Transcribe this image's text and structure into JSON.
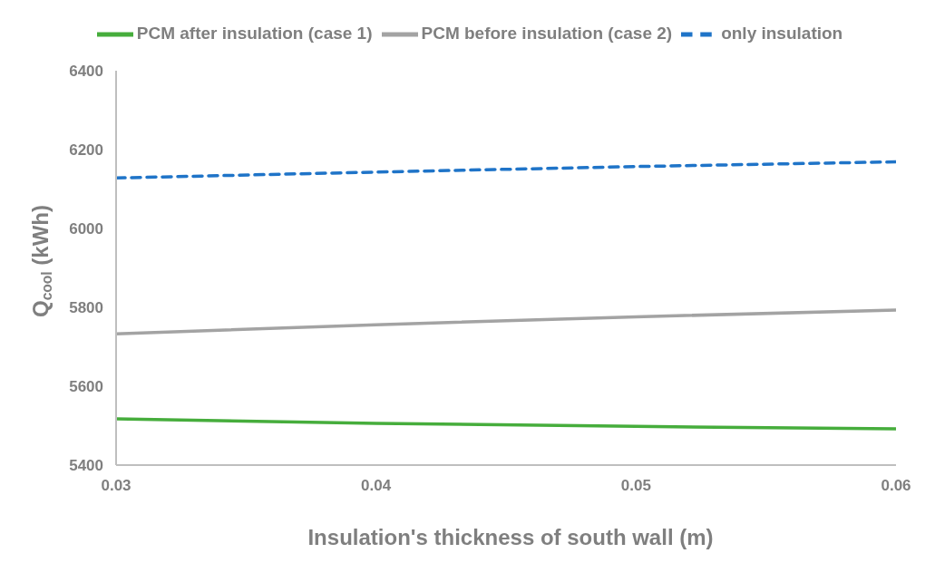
{
  "chart_data": {
    "type": "line",
    "xlabel": "Insulation's thickness of south wall (m)",
    "ylabel": "Q$_{cool}$ (kWh)",
    "x": [
      0.03,
      0.04,
      0.05,
      0.06
    ],
    "series": [
      {
        "name": "only insulation",
        "color": "#1f74c8",
        "values": [
          6128,
          6143,
          6157,
          6169
        ],
        "line_style": "dashed"
      },
      {
        "name": "PCM after insulation (case 1)",
        "color": "#46ad3c",
        "values": [
          5517,
          5506,
          5498,
          5492
        ],
        "line_style": "solid"
      },
      {
        "name": "PCM before insulation (case 2)",
        "color": "#a3a3a3",
        "values": [
          5733,
          5756,
          5776,
          5793
        ],
        "line_style": "solid"
      }
    ],
    "xlim": [
      0.03,
      0.06
    ],
    "xticks": [
      0.03,
      0.04,
      0.05,
      0.06
    ],
    "ylim": [
      5400,
      6400
    ],
    "yticks": [
      5400,
      5600,
      5800,
      6000,
      6200,
      6400
    ],
    "grid": false,
    "legend": "top",
    "marker": "none"
  }
}
